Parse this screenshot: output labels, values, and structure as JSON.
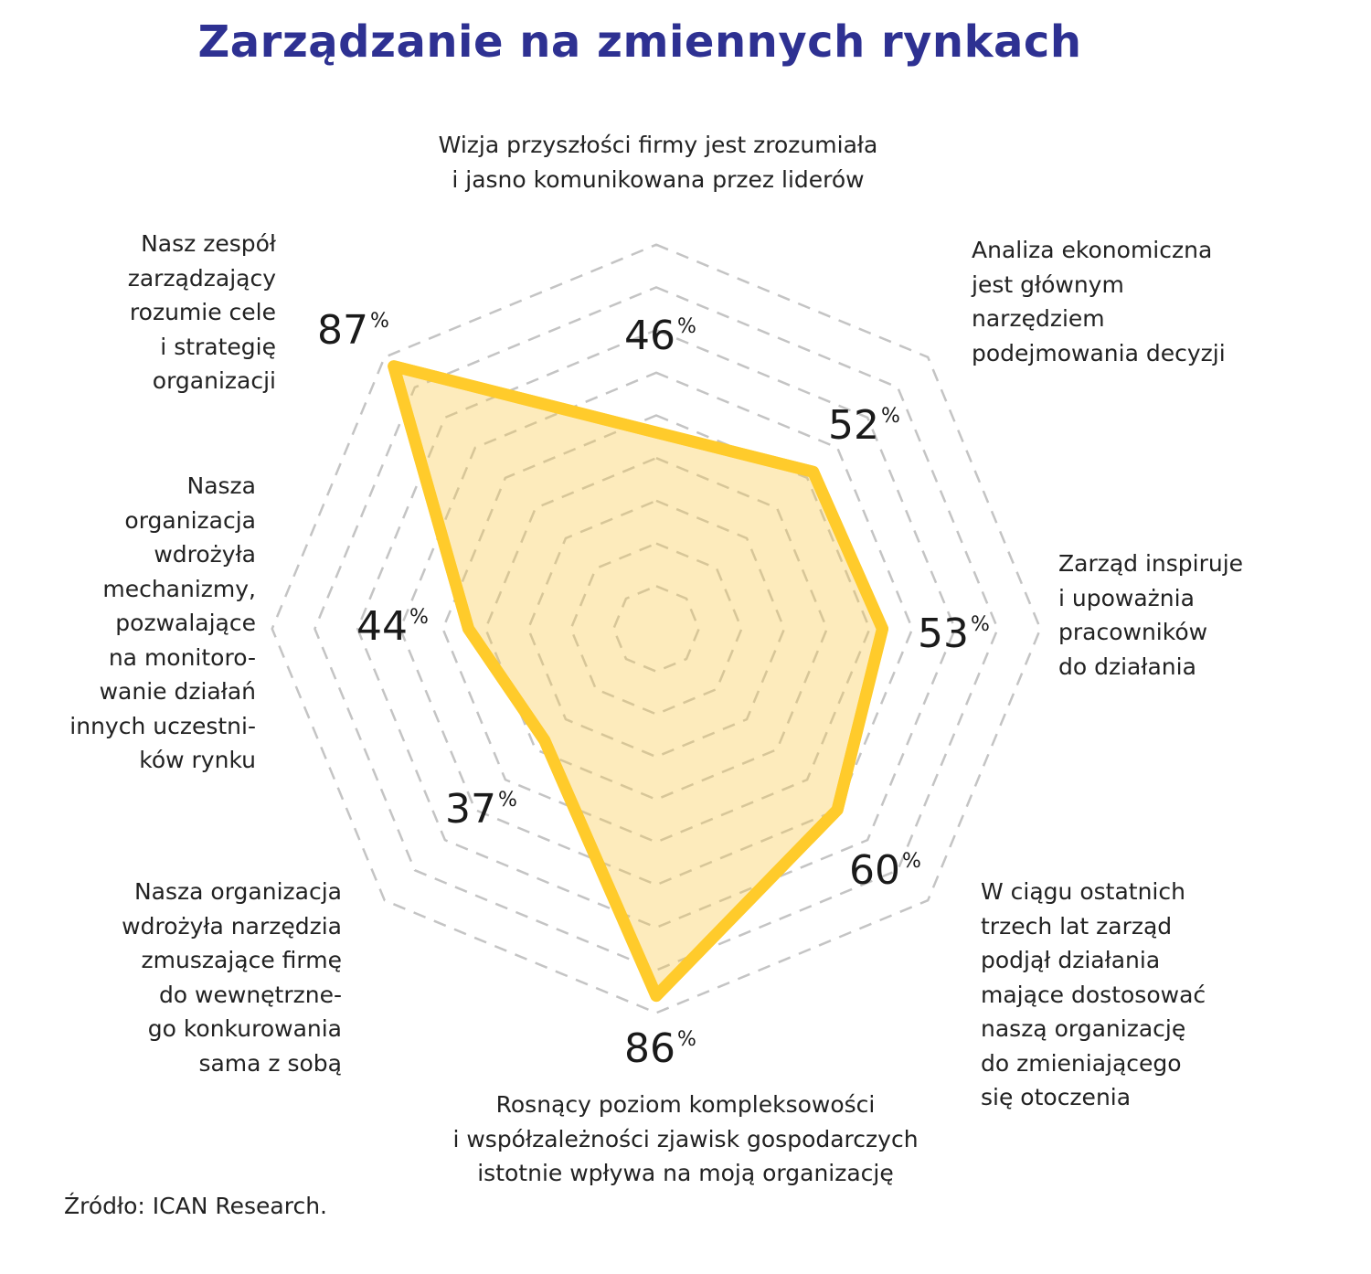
{
  "title": "Zarządzanie na zmiennych rynkach",
  "source": "Źródło: ICAN Research.",
  "colors": {
    "title": "#2E3192",
    "stroke": "#FFCB2B",
    "fill": "#FDE8B0",
    "grid": "#C4C4C4",
    "text": "#222222"
  },
  "chart_data": {
    "type": "radar",
    "title": "Zarządzanie na zmiennych rynkach",
    "unit": "%",
    "grid": true,
    "grid_rings": [
      10,
      20,
      30,
      40,
      50,
      60,
      70,
      80,
      90
    ],
    "range": [
      0,
      90
    ],
    "axes": [
      {
        "label": "Wizja przyszłości firmy jest zrozumiała\ni jasno komunikowana przez liderów",
        "value": 46,
        "direction": "top"
      },
      {
        "label": "Analiza ekonomiczna\njest głównym\nnarzędziem\npodejmowania decyzji",
        "value": 52,
        "direction": "top-right"
      },
      {
        "label": "Zarząd inspiruje\ni upoważnia\npracowników\ndo działania",
        "value": 53,
        "direction": "right"
      },
      {
        "label": "W ciągu ostatnich\ntrzech lat zarząd\npodjął działania\nmające dostosować\nnaszą organizację\ndo zmieniającego\nsię otoczenia",
        "value": 60,
        "direction": "bottom-right"
      },
      {
        "label": "Rosnący poziom kompleksowości\ni współzależności zjawisk gospodarczych\nistotnie wpływa na moją organizację",
        "value": 86,
        "direction": "bottom"
      },
      {
        "label": "Nasza organizacja\nwdrożyła narzędzia\nzmuszające firmę\ndo wewnętrzne-\ngo konkurowania\nsama z sobą",
        "value": 37,
        "direction": "bottom-left"
      },
      {
        "label": "Nasza\norganizacja\nwdrożyła\nmechanizmy,\npozwalające\nna monitoro-\nwanie działań\ninnych uczestni-\nków rynku",
        "value": 44,
        "direction": "left"
      },
      {
        "label": "Nasz zespół\nzarządzający\nrozumie cele\ni strategię\norganizacji",
        "value": 87,
        "direction": "top-left"
      }
    ]
  }
}
